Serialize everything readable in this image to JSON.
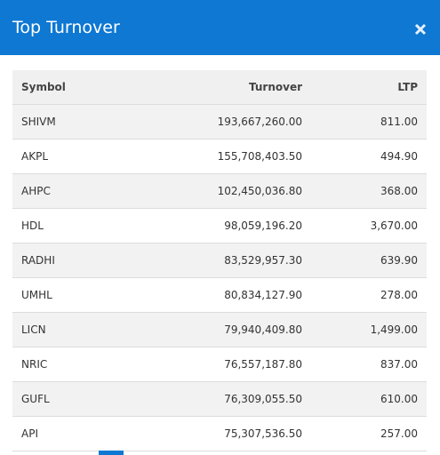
{
  "header": {
    "title": "Top Turnover"
  },
  "table": {
    "columns": [
      "Symbol",
      "Turnover",
      "LTP"
    ],
    "rows": [
      [
        "SHIVM",
        "193,667,260.00",
        "811.00"
      ],
      [
        "AKPL",
        "155,708,403.50",
        "494.90"
      ],
      [
        "AHPC",
        "102,450,036.80",
        "368.00"
      ],
      [
        "HDL",
        "98,059,196.20",
        "3,670.00"
      ],
      [
        "RADHI",
        "83,529,957.30",
        "639.90"
      ],
      [
        "UMHL",
        "80,834,127.90",
        "278.00"
      ],
      [
        "LICN",
        "79,940,409.80",
        "1,499.00"
      ],
      [
        "NRIC",
        "76,557,187.80",
        "837.00"
      ],
      [
        "GUFL",
        "76,309,055.50",
        "610.00"
      ],
      [
        "API",
        "75,307,536.50",
        "257.00"
      ]
    ]
  }
}
